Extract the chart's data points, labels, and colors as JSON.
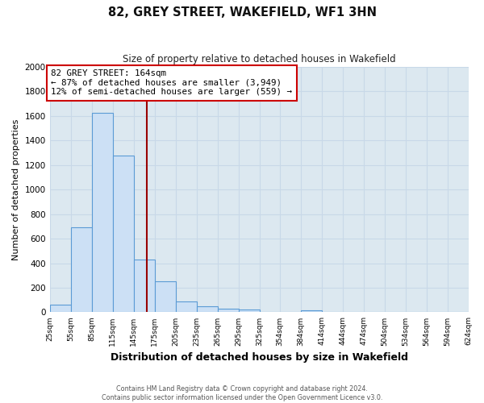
{
  "title": "82, GREY STREET, WAKEFIELD, WF1 3HN",
  "subtitle": "Size of property relative to detached houses in Wakefield",
  "xlabel": "Distribution of detached houses by size in Wakefield",
  "ylabel": "Number of detached properties",
  "bar_left_edges": [
    25,
    55,
    85,
    115,
    145,
    175,
    205,
    235,
    265,
    295,
    325,
    354,
    384,
    414,
    444,
    474,
    504,
    534,
    564,
    594
  ],
  "bar_widths": [
    30,
    30,
    30,
    30,
    30,
    30,
    30,
    30,
    30,
    30,
    29,
    30,
    30,
    30,
    30,
    30,
    30,
    30,
    30,
    30
  ],
  "bar_heights": [
    65,
    695,
    1625,
    1275,
    430,
    250,
    90,
    50,
    30,
    25,
    0,
    0,
    15,
    0,
    0,
    0,
    0,
    0,
    0,
    0
  ],
  "bar_color": "#cce0f5",
  "bar_edge_color": "#5b9bd5",
  "tick_labels": [
    "25sqm",
    "55sqm",
    "85sqm",
    "115sqm",
    "145sqm",
    "175sqm",
    "205sqm",
    "235sqm",
    "265sqm",
    "295sqm",
    "325sqm",
    "354sqm",
    "384sqm",
    "414sqm",
    "444sqm",
    "474sqm",
    "504sqm",
    "534sqm",
    "564sqm",
    "594sqm",
    "624sqm"
  ],
  "ylim": [
    0,
    2000
  ],
  "yticks": [
    0,
    200,
    400,
    600,
    800,
    1000,
    1200,
    1400,
    1600,
    1800,
    2000
  ],
  "vline_x": 164,
  "vline_color": "#990000",
  "annotation_title": "82 GREY STREET: 164sqm",
  "annotation_line1": "← 87% of detached houses are smaller (3,949)",
  "annotation_line2": "12% of semi-detached houses are larger (559) →",
  "annotation_box_color": "#ffffff",
  "annotation_box_edge_color": "#cc0000",
  "grid_color": "#c8d8e8",
  "plot_bg_color": "#dce8f0",
  "fig_bg_color": "#ffffff",
  "footer_line1": "Contains HM Land Registry data © Crown copyright and database right 2024.",
  "footer_line2": "Contains public sector information licensed under the Open Government Licence v3.0."
}
